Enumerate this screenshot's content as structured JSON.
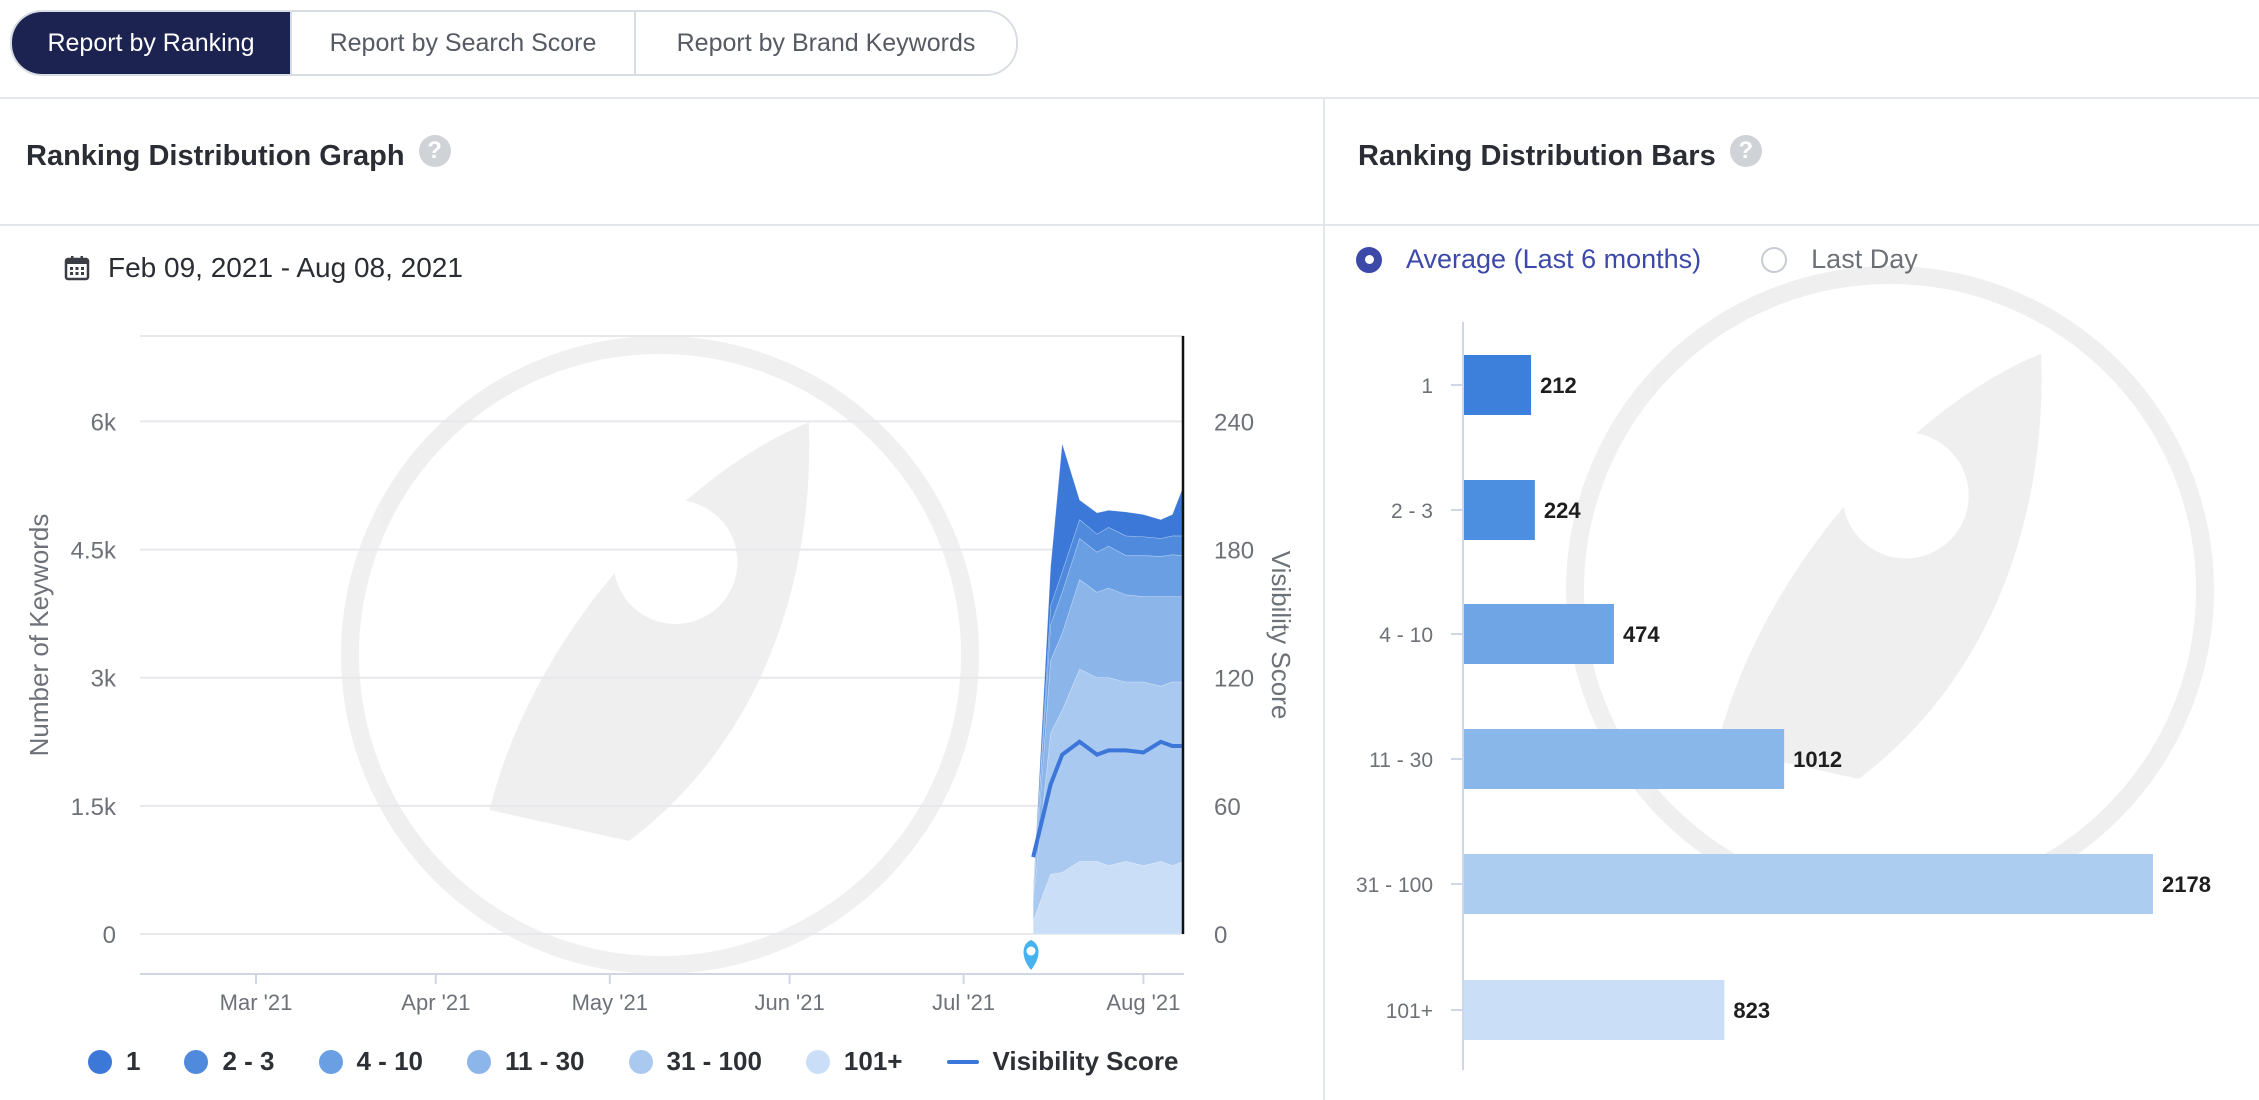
{
  "tabs": [
    {
      "label": "Report by Ranking",
      "active": true
    },
    {
      "label": "Report by Search Score",
      "active": false
    },
    {
      "label": "Report by Brand Keywords",
      "active": false
    }
  ],
  "left_panel": {
    "title": "Ranking Distribution Graph",
    "help_icon": "?",
    "date_range": "Feb 09, 2021 - Aug 08, 2021"
  },
  "right_panel": {
    "title": "Ranking Distribution Bars",
    "help_icon": "?",
    "radio_options": [
      {
        "label": "Average (Last 6 months)",
        "selected": true
      },
      {
        "label": "Last Day",
        "selected": false
      }
    ]
  },
  "legend": {
    "items": [
      {
        "label": "1",
        "color": "#3c78d8"
      },
      {
        "label": "2 - 3",
        "color": "#4f8add"
      },
      {
        "label": "4 - 10",
        "color": "#6b9fe3"
      },
      {
        "label": "11 - 30",
        "color": "#8cb5ea"
      },
      {
        "label": "31 - 100",
        "color": "#a9c9f0"
      },
      {
        "label": "101+",
        "color": "#cadff7"
      }
    ],
    "line_label": "Visibility Score",
    "line_color": "#3c76d8"
  },
  "chart_data": [
    {
      "type": "area",
      "stacked": true,
      "ylabel": "Number of Keywords",
      "y2label": "Visibility Score",
      "ylim": [
        0,
        7000
      ],
      "y2lim": [
        0,
        280
      ],
      "yticks": [
        "0",
        "1.5k",
        "3k",
        "4.5k",
        "6k"
      ],
      "y2ticks": [
        "0",
        "60",
        "120",
        "180",
        "240"
      ],
      "xticks": [
        "Mar '21",
        "Apr '21",
        "May '21",
        "Jun '21",
        "Jul '21",
        "Aug '21"
      ],
      "x": [
        "2021-07-13",
        "2021-07-16",
        "2021-07-18",
        "2021-07-21",
        "2021-07-24",
        "2021-07-26",
        "2021-07-29",
        "2021-08-01",
        "2021-08-04",
        "2021-08-06",
        "2021-08-08"
      ],
      "series": [
        {
          "name": "101+",
          "values": [
            150,
            700,
            720,
            850,
            850,
            800,
            850,
            800,
            850,
            800,
            850
          ]
        },
        {
          "name": "31 - 100",
          "values": [
            250,
            1650,
            1900,
            2250,
            2150,
            2200,
            2100,
            2150,
            2050,
            2150,
            2100
          ]
        },
        {
          "name": "11 - 30",
          "values": [
            50,
            850,
            900,
            1050,
            1000,
            1050,
            1020,
            1000,
            1050,
            1000,
            1000
          ]
        },
        {
          "name": "4 - 10",
          "values": [
            20,
            420,
            480,
            480,
            470,
            490,
            460,
            480,
            470,
            490,
            480
          ]
        },
        {
          "name": "2 - 3",
          "values": [
            10,
            220,
            240,
            220,
            210,
            220,
            230,
            220,
            210,
            220,
            230
          ]
        },
        {
          "name": "1",
          "values": [
            5,
            450,
            1500,
            230,
            250,
            200,
            280,
            260,
            220,
            250,
            600
          ]
        }
      ],
      "line": {
        "name": "Visibility Score",
        "axis": "y2",
        "values": [
          36,
          70,
          84,
          90,
          84,
          86,
          86,
          85,
          90,
          88,
          88
        ]
      }
    },
    {
      "type": "bar",
      "orientation": "horizontal",
      "categories": [
        "1",
        "2 - 3",
        "4 - 10",
        "11 - 30",
        "31 - 100",
        "101+"
      ],
      "values": [
        212,
        224,
        474,
        1012,
        2178,
        823
      ],
      "value_labels": [
        "212",
        "224",
        "474",
        "1012",
        "2178",
        "823"
      ],
      "colors": [
        "#3c80dc",
        "#4c8ee0",
        "#6fa5e4",
        "#8ab7ea",
        "#acccf0",
        "#cadff7"
      ],
      "xlim": [
        0,
        2200
      ]
    }
  ]
}
